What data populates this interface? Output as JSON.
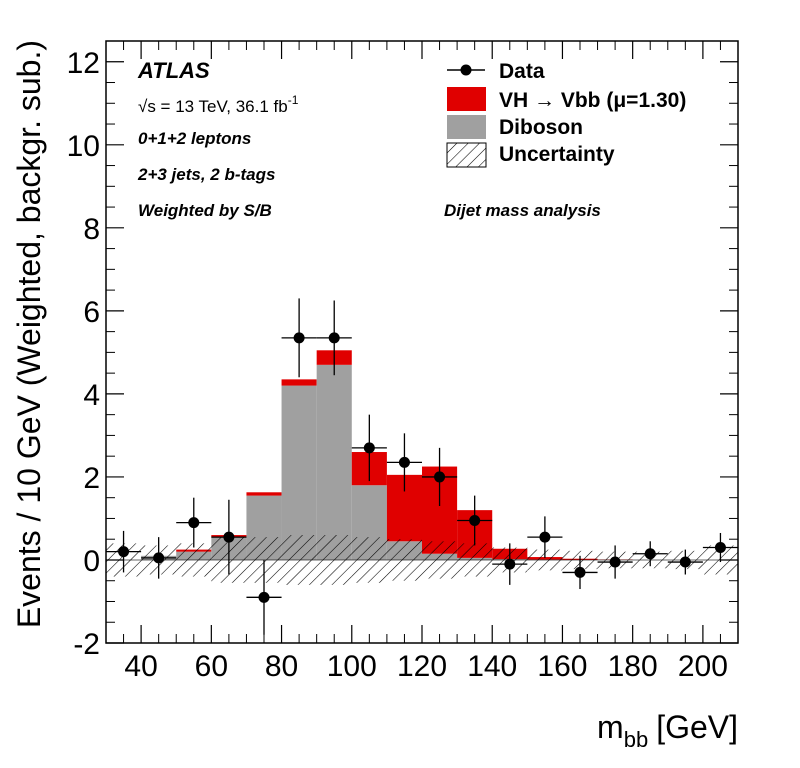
{
  "chart_data": {
    "type": "bar",
    "xlabel": "m",
    "xlabel_sub": "bb",
    "xlabel_unit": "[GeV]",
    "ylabel": "Events / 10 GeV (Weighted, backgr. sub.)",
    "xlim": [
      30,
      210
    ],
    "ylim": [
      -2,
      12.5
    ],
    "x_ticks": [
      40,
      60,
      80,
      100,
      120,
      140,
      160,
      180,
      200
    ],
    "y_ticks": [
      -2,
      0,
      2,
      4,
      6,
      8,
      10,
      12
    ],
    "bin_edges": [
      30,
      40,
      50,
      60,
      70,
      80,
      90,
      100,
      110,
      120,
      130,
      140,
      150,
      160,
      170,
      180,
      190,
      200,
      210
    ],
    "series": [
      {
        "name": "Diboson",
        "kind": "stack",
        "color": "#a0a0a0",
        "values": [
          0.0,
          0.1,
          0.2,
          0.55,
          1.55,
          4.2,
          4.7,
          1.8,
          0.45,
          0.15,
          0.05,
          0.02,
          0.01,
          0.0,
          0.0,
          0.0,
          0.0,
          0.0
        ]
      },
      {
        "name": "VH",
        "kind": "stack",
        "color": "#e00000",
        "values": [
          0.0,
          0.0,
          0.05,
          0.05,
          0.08,
          0.15,
          0.35,
          0.8,
          1.6,
          2.1,
          1.15,
          0.25,
          0.06,
          0.03,
          0.01,
          0.0,
          0.0,
          0.0
        ]
      },
      {
        "name": "Data",
        "kind": "points",
        "color": "#000000",
        "x": [
          35,
          45,
          55,
          65,
          75,
          85,
          95,
          105,
          115,
          125,
          135,
          145,
          155,
          165,
          175,
          185,
          195,
          205
        ],
        "y": [
          0.2,
          0.05,
          0.9,
          0.55,
          -0.9,
          5.35,
          5.35,
          2.7,
          2.35,
          2.0,
          0.95,
          -0.1,
          0.55,
          -0.3,
          -0.05,
          0.15,
          -0.05,
          0.3
        ],
        "err": [
          0.5,
          0.5,
          0.6,
          0.9,
          0.9,
          0.95,
          0.9,
          0.8,
          0.7,
          0.7,
          0.6,
          0.5,
          0.5,
          0.4,
          0.4,
          0.3,
          0.3,
          0.35
        ]
      },
      {
        "name": "Uncertainty",
        "kind": "band",
        "values": [
          0.4,
          0.35,
          0.4,
          0.55,
          0.55,
          0.6,
          0.6,
          0.55,
          0.5,
          0.45,
          0.4,
          0.3,
          0.25,
          0.22,
          0.2,
          0.2,
          0.22,
          0.35
        ]
      }
    ],
    "legend": [
      {
        "label": "Data",
        "style": "marker"
      },
      {
        "label": "VH  → Vbb (μ=1.30)",
        "style": "fill",
        "color": "#e00000"
      },
      {
        "label": "Diboson",
        "style": "fill",
        "color": "#a0a0a0"
      },
      {
        "label": "Uncertainty",
        "style": "hatch"
      }
    ],
    "legend_position": "top-right",
    "annotations": {
      "experiment": "ATLAS",
      "energy": "√s = 13 TeV, 36.1 fb",
      "energy_sup": "-1",
      "channel": "0+1+2 leptons",
      "jets": "2+3 jets, 2 b-tags",
      "weighting": "Weighted by S/B",
      "analysis": "Dijet mass analysis"
    },
    "grid": false
  }
}
